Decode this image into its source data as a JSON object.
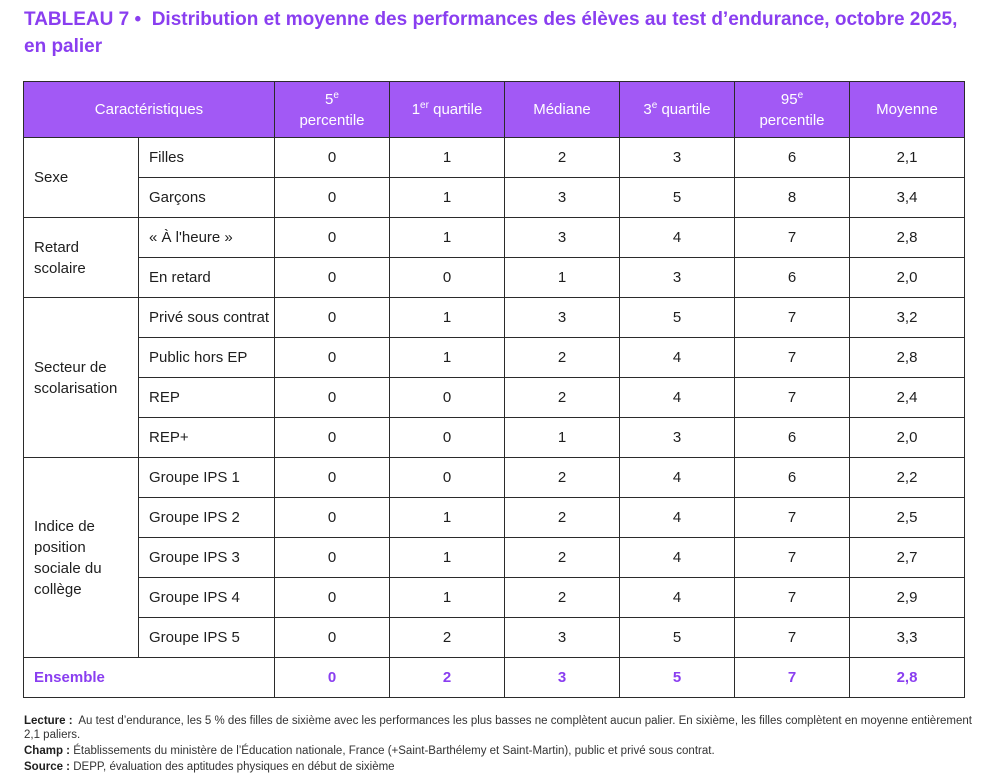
{
  "title": {
    "label": "TABLEAU 7 •",
    "text": "Distribution et moyenne des performances des élèves au test d’endurance, octobre 2025, en palier"
  },
  "table": {
    "headers": {
      "characteristics": "Caractéristiques",
      "p5_num": "5",
      "p5_sup": "e",
      "p5_word": "percentile",
      "q1_num": "1",
      "q1_sup": "er",
      "q1_word": "quartile",
      "median": "Médiane",
      "q3_num": "3",
      "q3_sup": "e",
      "q3_word": "quartile",
      "p95_num": "95",
      "p95_sup": "e",
      "p95_word": "percentile",
      "mean": "Moyenne"
    },
    "groups": [
      {
        "name": "Sexe",
        "rows": [
          {
            "label": "Filles",
            "values": [
              "0",
              "1",
              "2",
              "3",
              "6",
              "2,1"
            ]
          },
          {
            "label": "Garçons",
            "values": [
              "0",
              "1",
              "3",
              "5",
              "8",
              "3,4"
            ]
          }
        ]
      },
      {
        "name": "Retard scolaire",
        "rows": [
          {
            "label": "« À l'heure »",
            "values": [
              "0",
              "1",
              "3",
              "4",
              "7",
              "2,8"
            ]
          },
          {
            "label": "En retard",
            "values": [
              "0",
              "0",
              "1",
              "3",
              "6",
              "2,0"
            ]
          }
        ]
      },
      {
        "name": "Secteur de scolarisation",
        "rows": [
          {
            "label": "Privé sous contrat",
            "values": [
              "0",
              "1",
              "3",
              "5",
              "7",
              "3,2"
            ]
          },
          {
            "label": "Public hors EP",
            "values": [
              "0",
              "1",
              "2",
              "4",
              "7",
              "2,8"
            ]
          },
          {
            "label": "REP",
            "values": [
              "0",
              "0",
              "2",
              "4",
              "7",
              "2,4"
            ]
          },
          {
            "label": "REP+",
            "values": [
              "0",
              "0",
              "1",
              "3",
              "6",
              "2,0"
            ]
          }
        ]
      },
      {
        "name": "Indice de position sociale du collège",
        "rows": [
          {
            "label": "Groupe IPS 1",
            "values": [
              "0",
              "0",
              "2",
              "4",
              "6",
              "2,2"
            ]
          },
          {
            "label": "Groupe IPS 2",
            "values": [
              "0",
              "1",
              "2",
              "4",
              "7",
              "2,5"
            ]
          },
          {
            "label": "Groupe IPS 3",
            "values": [
              "0",
              "1",
              "2",
              "4",
              "7",
              "2,7"
            ]
          },
          {
            "label": "Groupe IPS 4",
            "values": [
              "0",
              "1",
              "2",
              "4",
              "7",
              "2,9"
            ]
          },
          {
            "label": "Groupe IPS 5",
            "values": [
              "0",
              "2",
              "3",
              "5",
              "7",
              "3,3"
            ]
          }
        ]
      }
    ],
    "total": {
      "label": "Ensemble",
      "values": [
        "0",
        "2",
        "3",
        "5",
        "7",
        "2,8"
      ]
    }
  },
  "notes": {
    "lecture_label": "Lecture :",
    "lecture_text": "Au test d’endurance, les 5 % des filles de sixième avec les performances les plus basses ne complètent aucun palier. En sixième, les filles complètent en moyenne entièrement 2,1 paliers.",
    "champ_label": "Champ :",
    "champ_text": "Établissements du ministère de l’Éducation nationale, France (+Saint-Barthélemy et Saint-Martin), public et privé sous contrat.",
    "source_label": "Source :",
    "source_text": "DEPP, évaluation des aptitudes physiques en début de sixième"
  }
}
